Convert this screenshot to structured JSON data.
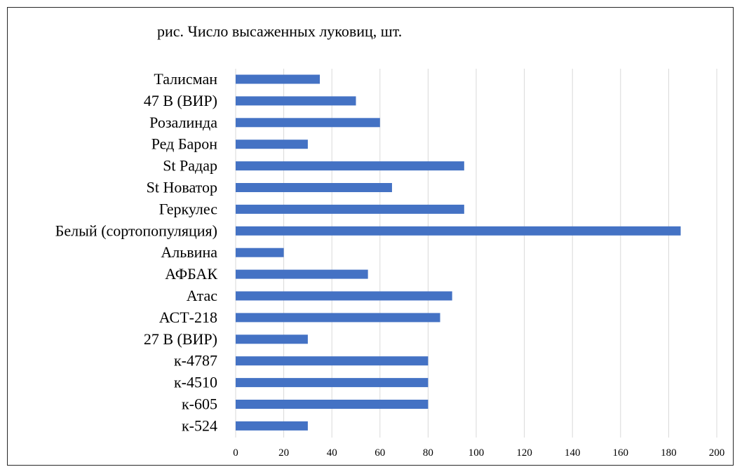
{
  "chart_data": {
    "type": "bar",
    "orientation": "horizontal",
    "title": "рис. Число высаженных луковиц, шт.",
    "categories": [
      "Талисман",
      "47 В (ВИР)",
      "Розалинда",
      "Ред Барон",
      "St Радар",
      "St Новатор",
      "Геркулес",
      "Белый (сортопопуляция)",
      "Альвина",
      "АФБАК",
      "Атас",
      "АСТ-218",
      "27 В (ВИР)",
      "к-4787",
      "к-4510",
      "к-605",
      "к-524"
    ],
    "values": [
      35,
      50,
      60,
      30,
      95,
      65,
      95,
      185,
      20,
      55,
      90,
      85,
      30,
      80,
      80,
      80,
      30
    ],
    "xlim": [
      0,
      200
    ],
    "xticks": [
      "0",
      "20",
      "40",
      "60",
      "80",
      "100",
      "120",
      "140",
      "160",
      "180",
      "200"
    ],
    "grid": "vertical",
    "bar_color": "#4472c4",
    "grid_color": "#d9d9d9"
  }
}
